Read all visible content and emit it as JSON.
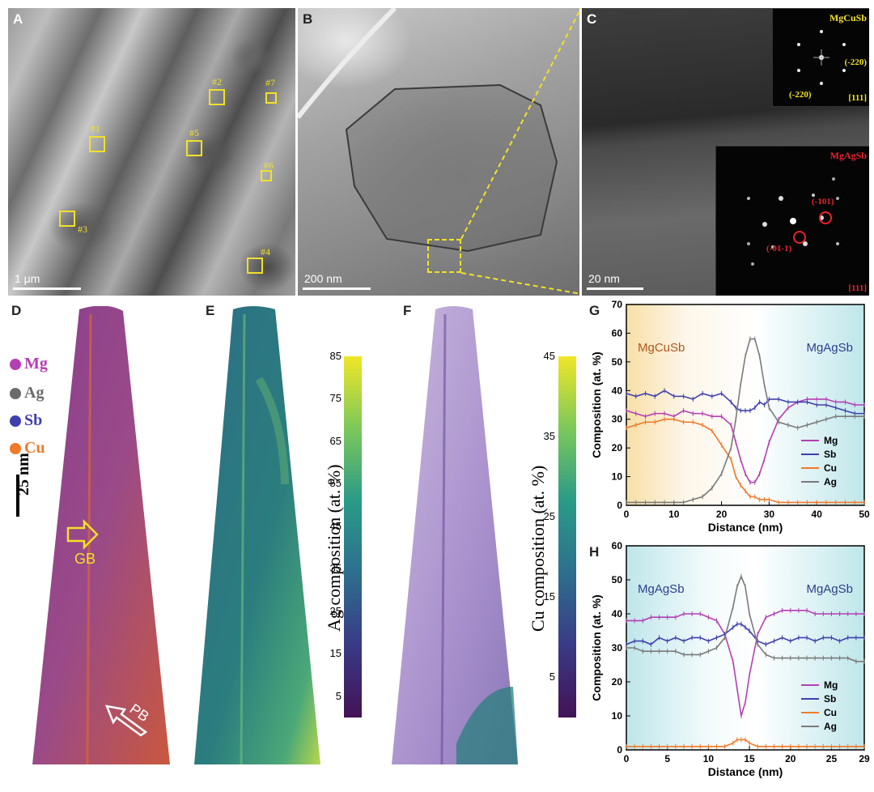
{
  "panels": {
    "A": {
      "label": "A",
      "scalebar": "1 μm",
      "regions": [
        "#1",
        "#2",
        "#3",
        "#4",
        "#5",
        "#6",
        "#7"
      ]
    },
    "B": {
      "label": "B",
      "scalebar": "200 nm"
    },
    "C": {
      "label": "C",
      "scalebar": "20 nm",
      "fft_top": {
        "title": "MgCuSb",
        "spot1": "(-220)",
        "spot2": "(-220)",
        "zone": "[111]"
      },
      "fft_bottom": {
        "title": "MgAgSb",
        "spot1": "(-101)",
        "spot2": "(-01-1)",
        "zone": "[111]"
      }
    },
    "D": {
      "label": "D",
      "legend": [
        "Mg",
        "Ag",
        "Sb",
        "Cu"
      ],
      "scalebar": "25 nm",
      "gb": "GB",
      "pb": "PB"
    },
    "E": {
      "label": "E",
      "colorbar_label": "Ag composition (at. %)",
      "ticks": [
        "85",
        "75",
        "65",
        "55",
        "45",
        "35",
        "25",
        "15",
        "5"
      ]
    },
    "F": {
      "label": "F",
      "colorbar_label": "Cu composition (at. %)",
      "ticks": [
        "45",
        "35",
        "25",
        "15",
        "5"
      ]
    },
    "G": {
      "label": "G"
    },
    "H": {
      "label": "H"
    }
  },
  "colors": {
    "Mg": "#b43fb4",
    "Sb": "#3f3fae",
    "Cu": "#f07a2a",
    "Ag": "#7a7a7a",
    "box": "#f2e02a",
    "fft_cu": "#f2e02a",
    "fft_ag": "#e8232a"
  },
  "chart_data": [
    {
      "type": "line",
      "panel": "G",
      "xlabel": "Distance (nm)",
      "ylabel": "Composition (at. %)",
      "xlim": [
        0,
        50
      ],
      "ylim": [
        0,
        70
      ],
      "xticks": [
        0,
        10,
        20,
        30,
        40,
        50
      ],
      "yticks": [
        0,
        10,
        20,
        30,
        40,
        50,
        60,
        70
      ],
      "annotations": [
        "MgCuSb",
        "MgAgSb"
      ],
      "x": [
        0,
        2,
        4,
        6,
        8,
        10,
        12,
        14,
        16,
        18,
        20,
        22,
        23,
        24,
        25,
        26,
        27,
        28,
        29,
        30,
        32,
        34,
        36,
        38,
        40,
        42,
        44,
        46,
        48,
        50
      ],
      "series": [
        {
          "name": "Mg",
          "values": [
            33,
            32,
            31,
            32,
            32,
            31,
            33,
            32,
            32,
            31,
            31,
            28,
            22,
            16,
            11,
            8,
            8,
            11,
            16,
            22,
            30,
            34,
            36,
            37,
            37,
            37,
            36,
            36,
            35,
            35
          ]
        },
        {
          "name": "Sb",
          "values": [
            39,
            38,
            39,
            38,
            40,
            38,
            38,
            37,
            39,
            38,
            39,
            36,
            34,
            33,
            33,
            33,
            34,
            36,
            35,
            37,
            37,
            36,
            36,
            36,
            35,
            35,
            34,
            33,
            32,
            32
          ]
        },
        {
          "name": "Cu",
          "values": [
            27,
            28,
            29,
            29,
            30,
            30,
            29,
            29,
            28,
            26,
            21,
            16,
            10,
            7,
            5,
            3,
            3,
            2,
            2,
            2,
            1,
            1,
            1,
            1,
            1,
            1,
            1,
            1,
            1,
            1
          ]
        },
        {
          "name": "Ag",
          "values": [
            1,
            1,
            1,
            1,
            1,
            1,
            1,
            2,
            3,
            6,
            11,
            20,
            30,
            42,
            52,
            58,
            58,
            52,
            42,
            34,
            29,
            28,
            27,
            28,
            29,
            30,
            31,
            31,
            31,
            31
          ]
        }
      ]
    },
    {
      "type": "line",
      "panel": "H",
      "xlabel": "Distance (nm)",
      "ylabel": "Composition (at. %)",
      "xlim": [
        0,
        29
      ],
      "ylim": [
        0,
        60
      ],
      "xticks": [
        0,
        5,
        10,
        15,
        20,
        25,
        29
      ],
      "yticks": [
        0,
        10,
        20,
        30,
        40,
        50,
        60
      ],
      "annotations": [
        "MgAgSb",
        "MgAgSb"
      ],
      "x": [
        0,
        1,
        2,
        3,
        4,
        5,
        6,
        7,
        8,
        9,
        10,
        11,
        12,
        13,
        13.5,
        14,
        14.5,
        15,
        16,
        17,
        18,
        19,
        20,
        21,
        22,
        23,
        24,
        25,
        26,
        27,
        28,
        29
      ],
      "series": [
        {
          "name": "Mg",
          "values": [
            38,
            38,
            38,
            39,
            39,
            39,
            39,
            40,
            40,
            40,
            39,
            38,
            34,
            26,
            18,
            10,
            14,
            22,
            34,
            39,
            40,
            41,
            41,
            41,
            41,
            40,
            40,
            40,
            40,
            40,
            40,
            40
          ]
        },
        {
          "name": "Sb",
          "values": [
            31,
            32,
            32,
            31,
            33,
            32,
            33,
            32,
            33,
            33,
            32,
            33,
            34,
            36,
            37,
            37,
            36,
            35,
            32,
            31,
            32,
            33,
            32,
            33,
            33,
            32,
            33,
            33,
            32,
            33,
            33,
            33
          ]
        },
        {
          "name": "Cu",
          "values": [
            1,
            1,
            1,
            1,
            1,
            1,
            1,
            1,
            1,
            1,
            1,
            1,
            1,
            2,
            3,
            3,
            3,
            2,
            1,
            1,
            1,
            1,
            1,
            1,
            1,
            1,
            1,
            1,
            1,
            1,
            1,
            1
          ]
        },
        {
          "name": "Ag",
          "values": [
            30,
            30,
            29,
            29,
            29,
            29,
            29,
            28,
            28,
            28,
            29,
            30,
            33,
            42,
            48,
            51,
            48,
            40,
            31,
            28,
            27,
            27,
            27,
            27,
            27,
            27,
            27,
            27,
            27,
            27,
            26,
            26
          ]
        }
      ]
    }
  ]
}
